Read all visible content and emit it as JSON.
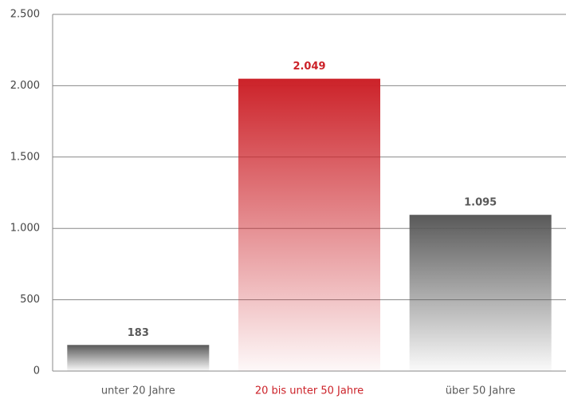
{
  "chart_data": {
    "type": "bar",
    "categories": [
      "unter 20 Jahre",
      "20 bis unter 50 Jahre",
      "über 50 Jahre"
    ],
    "values": [
      183,
      2049,
      1095
    ],
    "value_labels": [
      "183",
      "2.049",
      "1.095"
    ],
    "colors": [
      "#595959",
      "#cc2229",
      "#595959"
    ],
    "ylim": [
      0,
      2500
    ],
    "yticks": [
      0,
      500,
      {
        "value": 1000,
        "label": "1.000"
      },
      {
        "value": 1500,
        "label": "1.500"
      },
      {
        "value": 2000,
        "label": "2.000"
      },
      {
        "value": 2500,
        "label": "2.500"
      }
    ],
    "grid": true
  }
}
